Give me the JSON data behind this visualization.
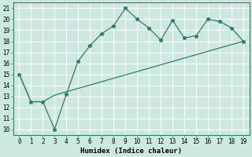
{
  "xlabel": "Humidex (Indice chaleur)",
  "line1_x": [
    0,
    1,
    2,
    3,
    4,
    5,
    6,
    7,
    8,
    9,
    10,
    11,
    12,
    13,
    14,
    15,
    16,
    17,
    18,
    19
  ],
  "line1_y": [
    15.0,
    12.5,
    12.5,
    10.0,
    13.2,
    16.2,
    17.6,
    18.7,
    19.4,
    21.0,
    20.0,
    19.2,
    18.1,
    19.9,
    18.3,
    18.5,
    20.0,
    19.8,
    19.2,
    18.0
  ],
  "line2_x": [
    0,
    1,
    2,
    3,
    19
  ],
  "line2_y": [
    15.0,
    12.5,
    12.5,
    13.1,
    18.0
  ],
  "line_color": "#2e7d6e",
  "bg_color": "#cce8df",
  "grid_color": "#ffffff",
  "xlim": [
    -0.5,
    19.5
  ],
  "ylim": [
    9.5,
    21.5
  ],
  "xticks": [
    0,
    1,
    2,
    3,
    4,
    5,
    6,
    7,
    8,
    9,
    10,
    11,
    12,
    13,
    14,
    15,
    16,
    17,
    18,
    19
  ],
  "yticks": [
    10,
    11,
    12,
    13,
    14,
    15,
    16,
    17,
    18,
    19,
    20,
    21
  ]
}
